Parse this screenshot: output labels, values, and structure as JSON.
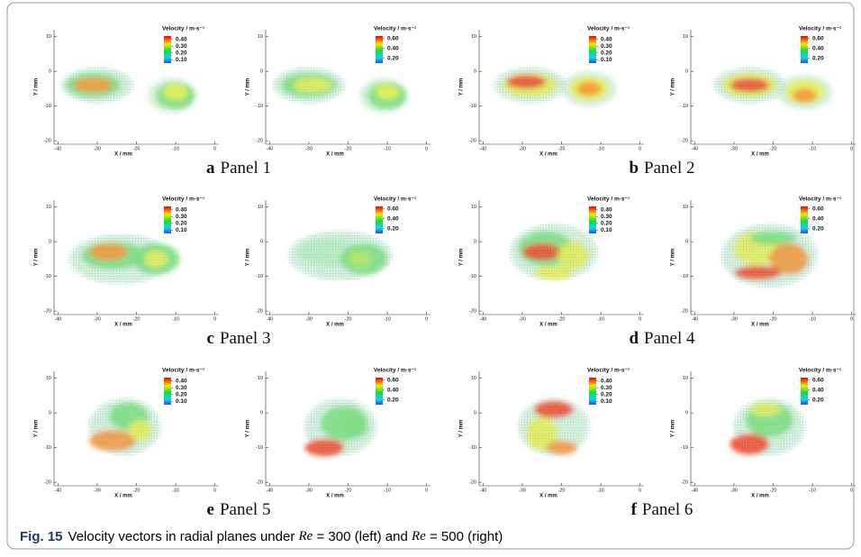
{
  "figure": {
    "axes": {
      "xlabel": "X / mm",
      "ylabel": "Y / mm",
      "xlim": [
        -41,
        1
      ],
      "ylim": [
        -21,
        12
      ],
      "xticks": [
        -40,
        -30,
        -20,
        -10,
        0
      ],
      "yticks": [
        10,
        0,
        -10,
        -20
      ]
    },
    "legends": [
      {
        "title": "Velocity / m·s⁻¹",
        "ticks": [
          {
            "value": 0.4,
            "label": "0.40"
          },
          {
            "value": 0.3,
            "label": "0.30"
          },
          {
            "value": 0.2,
            "label": "0.20"
          },
          {
            "value": 0.1,
            "label": "0.10"
          }
        ],
        "range": [
          0.05,
          0.45
        ]
      },
      {
        "title": "Velocity / m·s⁻¹",
        "ticks": [
          {
            "value": 0.6,
            "label": "0.60"
          },
          {
            "value": 0.4,
            "label": "0.40"
          },
          {
            "value": 0.2,
            "label": "0.20"
          }
        ],
        "range": [
          0.1,
          0.65
        ]
      }
    ],
    "panels": [
      {
        "letter": "a",
        "label": "Panel 1"
      },
      {
        "letter": "b",
        "label": "Panel 2"
      },
      {
        "letter": "c",
        "label": "Panel 3"
      },
      {
        "letter": "d",
        "label": "Panel 4"
      },
      {
        "letter": "e",
        "label": "Panel 5"
      },
      {
        "letter": "f",
        "label": "Panel 6"
      }
    ],
    "caption": {
      "label": "Fig. 15",
      "parts": [
        "Velocity vectors in radial planes under ",
        "Re",
        " = 300 (left) and ",
        "Re",
        " = 500 (right)"
      ]
    }
  }
}
